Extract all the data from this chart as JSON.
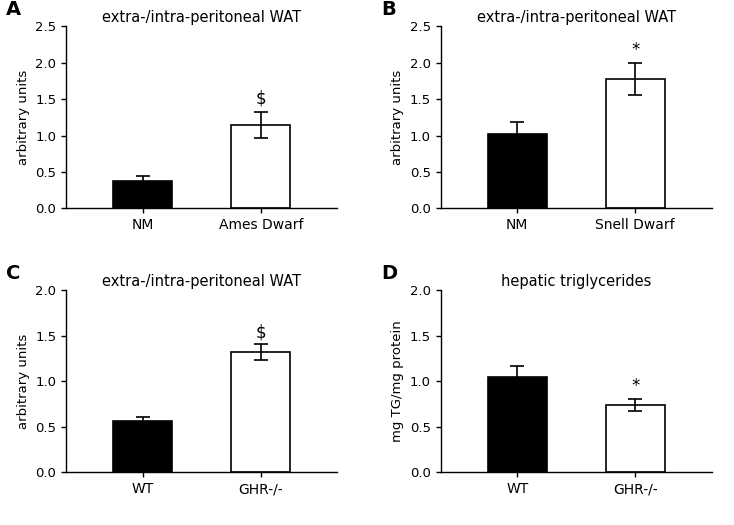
{
  "panels": {
    "A": {
      "title": "extra-/intra-peritoneal WAT",
      "label": "A",
      "categories": [
        "NM",
        "Ames Dwarf"
      ],
      "values": [
        0.37,
        1.14
      ],
      "errors": [
        0.07,
        0.18
      ],
      "colors": [
        "black",
        "white"
      ],
      "ylabel": "arbitrary units",
      "ylim": [
        0,
        2.5
      ],
      "yticks": [
        0.0,
        0.5,
        1.0,
        1.5,
        2.0,
        2.5
      ],
      "sig_bar": [
        1
      ],
      "sig_symbol": [
        "$"
      ],
      "sig_y": [
        1.38
      ]
    },
    "B": {
      "title": "extra-/intra-peritoneal WAT",
      "label": "B",
      "categories": [
        "NM",
        "Snell Dwarf"
      ],
      "values": [
        1.02,
        1.78
      ],
      "errors": [
        0.17,
        0.22
      ],
      "colors": [
        "black",
        "white"
      ],
      "ylabel": "arbitrary units",
      "ylim": [
        0,
        2.5
      ],
      "yticks": [
        0.0,
        0.5,
        1.0,
        1.5,
        2.0,
        2.5
      ],
      "sig_bar": [
        1
      ],
      "sig_symbol": [
        "*"
      ],
      "sig_y": [
        2.05
      ]
    },
    "C": {
      "title": "extra-/intra-peritoneal WAT",
      "label": "C",
      "categories": [
        "WT",
        "GHR-/-"
      ],
      "values": [
        0.57,
        1.32
      ],
      "errors": [
        0.04,
        0.09
      ],
      "colors": [
        "black",
        "white"
      ],
      "ylabel": "arbitrary units",
      "ylim": [
        0,
        2.0
      ],
      "yticks": [
        0.0,
        0.5,
        1.0,
        1.5,
        2.0
      ],
      "sig_bar": [
        1
      ],
      "sig_symbol": [
        "$"
      ],
      "sig_y": [
        1.44
      ]
    },
    "D": {
      "title": "hepatic triglycerides",
      "label": "D",
      "categories": [
        "WT",
        "GHR-/-"
      ],
      "values": [
        1.05,
        0.74
      ],
      "errors": [
        0.12,
        0.07
      ],
      "colors": [
        "black",
        "white"
      ],
      "ylabel": "mg TG/mg protein",
      "ylim": [
        0,
        2.0
      ],
      "yticks": [
        0.0,
        0.5,
        1.0,
        1.5,
        2.0
      ],
      "sig_bar": [
        1
      ],
      "sig_symbol": [
        "*"
      ],
      "sig_y": [
        0.85
      ]
    }
  },
  "background_color": "#ffffff",
  "bar_width": 0.5,
  "title_fontsize": 10.5,
  "label_fontsize": 14,
  "tick_fontsize": 9.5,
  "ylabel_fontsize": 9.5,
  "sig_fontsize": 12,
  "xtick_fontsize": 10
}
